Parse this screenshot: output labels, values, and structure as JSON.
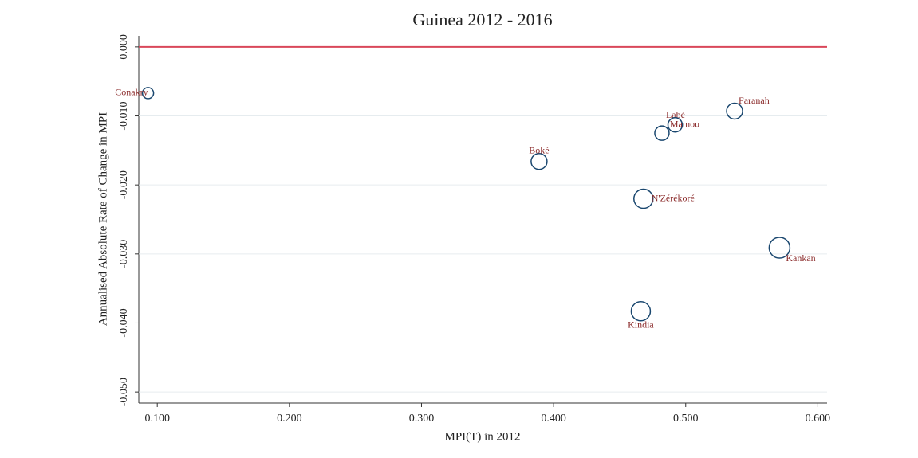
{
  "chart_data": {
    "type": "bubble",
    "title": "Guinea 2012 - 2016",
    "x_label": "MPI(T) in 2012",
    "y_label": "Annualised Absolute Rate of Change in MPI",
    "categories": [
      "Conakry",
      "Boké",
      "Labé",
      "Mamou",
      "Faranah",
      "N'Zérékoré",
      "Kankan",
      "Kindia"
    ],
    "x": [
      0.093,
      0.389,
      0.482,
      0.492,
      0.537,
      0.468,
      0.571,
      0.466
    ],
    "values": [
      -0.0067,
      -0.0166,
      -0.0125,
      -0.0113,
      -0.0093,
      -0.022,
      -0.0291,
      -0.0383
    ],
    "sizes": [
      7,
      10,
      9,
      9,
      10,
      12,
      13,
      12
    ],
    "color": "#1a476f",
    "label_color": "#8b2b2b",
    "hline": 0,
    "hline_color": "#d9475a",
    "xlim": [
      0.086,
      0.607
    ],
    "ylim": [
      -0.0516,
      0.0016
    ],
    "xticks": [
      {
        "value": 0.1,
        "label": "0.100"
      },
      {
        "value": 0.2,
        "label": "0.200"
      },
      {
        "value": 0.3,
        "label": "0.300"
      },
      {
        "value": 0.4,
        "label": "0.400"
      },
      {
        "value": 0.5,
        "label": "0.500"
      },
      {
        "value": 0.6,
        "label": "0.600"
      }
    ],
    "yticks": [
      {
        "value": 0,
        "label": "0.000"
      },
      {
        "value": -0.01,
        "label": "-0.010"
      },
      {
        "value": -0.02,
        "label": "-0.020"
      },
      {
        "value": -0.03,
        "label": "-0.030"
      },
      {
        "value": -0.04,
        "label": "-0.040"
      },
      {
        "value": -0.05,
        "label": "-0.050"
      }
    ],
    "grid": true
  }
}
